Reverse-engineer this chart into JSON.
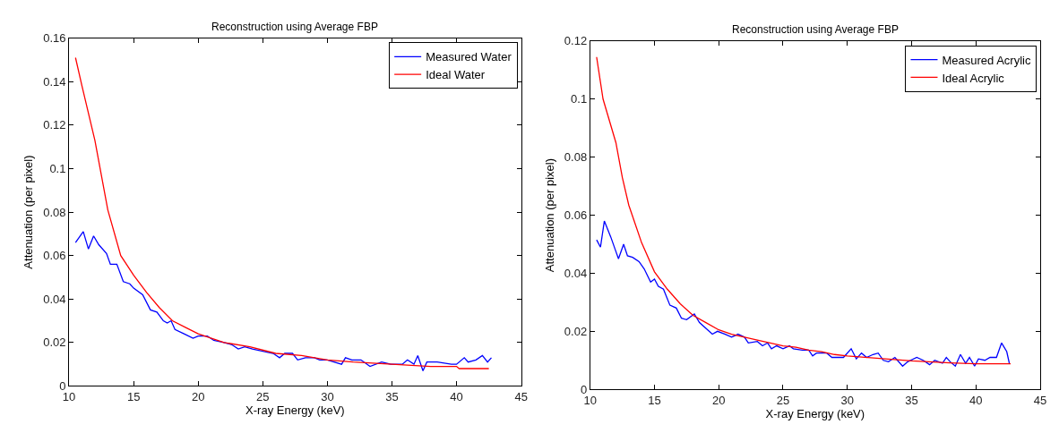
{
  "chart_data": [
    {
      "type": "line",
      "title": "Reconstruction using Average FBP",
      "xlabel": "X-ray Energy (keV)",
      "ylabel": "Attenuation (per pixel)",
      "xlim": [
        10,
        45
      ],
      "xticks": [
        10,
        15,
        20,
        25,
        30,
        35,
        40,
        45
      ],
      "ylim": [
        0,
        0.16
      ],
      "yticks": [
        0,
        0.02,
        0.04,
        0.06,
        0.08,
        0.1,
        0.12,
        0.14,
        0.16
      ],
      "legend": "top right",
      "line_style": "solid",
      "series": [
        {
          "name": "Measured Water",
          "color": "#0000ff",
          "x": [
            10.5,
            11.1,
            11.5,
            11.9,
            12.3,
            12.9,
            13.2,
            13.7,
            14.2,
            14.7,
            15,
            15.7,
            16.3,
            16.8,
            17.3,
            17.6,
            17.9,
            18.2,
            18.9,
            19.6,
            20,
            20.7,
            21.2,
            22,
            22.6,
            23.1,
            23.6,
            24.2,
            25,
            25.8,
            26.3,
            26.7,
            27.3,
            27.7,
            28.3,
            29,
            29.4,
            30,
            31.1,
            31.4,
            31.9,
            32.6,
            33.3,
            34.2,
            34.9,
            35.8,
            36.2,
            36.7,
            37,
            37.4,
            37.7,
            38.5,
            39.6,
            40,
            40.6,
            40.9,
            41.5,
            42,
            42.4,
            42.7
          ],
          "values": [
            0.066,
            0.071,
            0.063,
            0.069,
            0.065,
            0.061,
            0.056,
            0.056,
            0.048,
            0.047,
            0.045,
            0.042,
            0.035,
            0.034,
            0.03,
            0.029,
            0.03,
            0.026,
            0.024,
            0.022,
            0.023,
            0.023,
            0.021,
            0.02,
            0.019,
            0.017,
            0.018,
            0.017,
            0.016,
            0.015,
            0.013,
            0.015,
            0.015,
            0.012,
            0.013,
            0.013,
            0.012,
            0.012,
            0.01,
            0.013,
            0.012,
            0.012,
            0.009,
            0.011,
            0.01,
            0.01,
            0.012,
            0.01,
            0.014,
            0.007,
            0.011,
            0.011,
            0.01,
            0.01,
            0.013,
            0.011,
            0.012,
            0.014,
            0.011,
            0.013
          ]
        },
        {
          "name": "Ideal Water",
          "color": "#ff0000",
          "x": [
            10.5,
            11,
            12,
            13,
            14,
            15,
            16,
            17,
            18,
            19,
            20,
            22,
            24,
            26,
            28,
            30,
            32,
            35,
            38,
            40,
            40.2,
            42.5
          ],
          "values": [
            0.151,
            0.138,
            0.113,
            0.081,
            0.06,
            0.051,
            0.043,
            0.036,
            0.03,
            0.027,
            0.024,
            0.02,
            0.018,
            0.015,
            0.014,
            0.012,
            0.011,
            0.01,
            0.009,
            0.009,
            0.008,
            0.008
          ]
        }
      ]
    },
    {
      "type": "line",
      "title": "Reconstruction using Average FBP",
      "xlabel": "X-ray Energy (keV)",
      "ylabel": "Attenuation (per pixel)",
      "xlim": [
        10,
        45
      ],
      "xticks": [
        10,
        15,
        20,
        25,
        30,
        35,
        40,
        45
      ],
      "ylim": [
        0,
        0.12
      ],
      "yticks": [
        0,
        0.02,
        0.04,
        0.06,
        0.08,
        0.1,
        0.12
      ],
      "legend": "top right",
      "line_style": "solid",
      "series": [
        {
          "name": "Measured Acrylic",
          "color": "#0000ff",
          "x": [
            10.5,
            10.8,
            11.1,
            11.6,
            12,
            12.2,
            12.6,
            12.9,
            13.3,
            13.8,
            14.2,
            14.7,
            15,
            15.3,
            15.7,
            16.2,
            16.7,
            17.1,
            17.5,
            18.1,
            18.5,
            19,
            19.5,
            19.9,
            20.5,
            21,
            21.5,
            22,
            22.3,
            23,
            23.4,
            23.8,
            24.1,
            24.5,
            25,
            25.5,
            25.8,
            26.5,
            27,
            27.3,
            27.6,
            28.4,
            28.8,
            29.7,
            30.3,
            30.7,
            31.1,
            31.5,
            32,
            32.4,
            32.8,
            33.2,
            33.7,
            34.3,
            34.7,
            35.4,
            35.9,
            36.4,
            36.8,
            37.4,
            37.7,
            38,
            38.4,
            38.8,
            39.2,
            39.5,
            39.9,
            40.2,
            40.7,
            41.1,
            41.6,
            42,
            42.4,
            42.6
          ],
          "values": [
            0.0515,
            0.049,
            0.058,
            0.0525,
            0.0475,
            0.045,
            0.05,
            0.046,
            0.0455,
            0.044,
            0.0415,
            0.037,
            0.038,
            0.0355,
            0.0345,
            0.029,
            0.028,
            0.0245,
            0.024,
            0.026,
            0.023,
            0.021,
            0.019,
            0.02,
            0.019,
            0.018,
            0.019,
            0.018,
            0.016,
            0.0165,
            0.015,
            0.016,
            0.014,
            0.015,
            0.014,
            0.015,
            0.014,
            0.0135,
            0.0135,
            0.0115,
            0.0125,
            0.0125,
            0.011,
            0.011,
            0.014,
            0.0105,
            0.0125,
            0.011,
            0.012,
            0.0125,
            0.01,
            0.0095,
            0.011,
            0.008,
            0.0095,
            0.011,
            0.01,
            0.0085,
            0.01,
            0.009,
            0.011,
            0.0095,
            0.008,
            0.012,
            0.009,
            0.011,
            0.008,
            0.0105,
            0.01,
            0.011,
            0.011,
            0.016,
            0.013,
            0.009
          ]
        },
        {
          "name": "Ideal Acrylic",
          "color": "#ff0000",
          "x": [
            10.5,
            11,
            12,
            12.5,
            13,
            14,
            15,
            16,
            17,
            18,
            19,
            20,
            21,
            22,
            23,
            24,
            25,
            26,
            27,
            28,
            29,
            30,
            35,
            38,
            40,
            42.7
          ],
          "values": [
            0.1145,
            0.1,
            0.085,
            0.073,
            0.0635,
            0.0505,
            0.0405,
            0.0345,
            0.0295,
            0.0255,
            0.023,
            0.0205,
            0.019,
            0.018,
            0.017,
            0.016,
            0.015,
            0.0145,
            0.0135,
            0.013,
            0.012,
            0.0115,
            0.0098,
            0.0091,
            0.0088,
            0.0088
          ]
        }
      ]
    }
  ]
}
